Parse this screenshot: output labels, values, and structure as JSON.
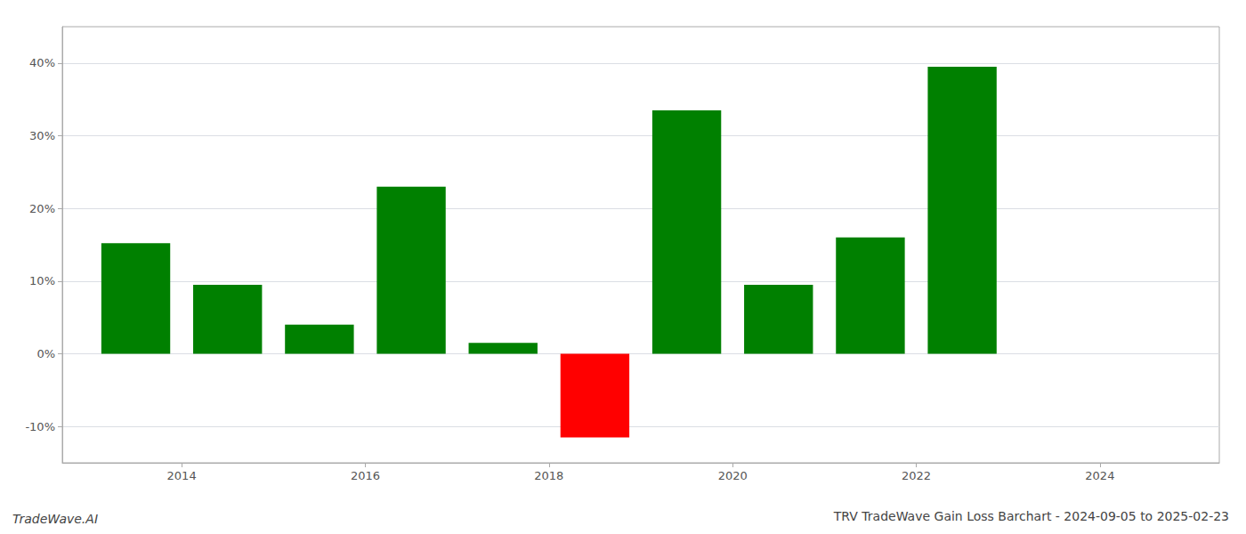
{
  "chart_data": {
    "type": "bar",
    "title": "TRV TradeWave Gain Loss Barchart - 2024-09-05 to 2025-02-23",
    "annotations": [
      "TradeWave.AI"
    ],
    "x": [
      2013,
      2014,
      2015,
      2016,
      2017,
      2018,
      2019,
      2020,
      2021,
      2022
    ],
    "values": [
      15.2,
      9.5,
      4.0,
      23.0,
      1.5,
      -11.5,
      33.5,
      9.5,
      16.0,
      39.5
    ],
    "colors": [
      "#008000",
      "#008000",
      "#008000",
      "#008000",
      "#008000",
      "#ff0000",
      "#008000",
      "#008000",
      "#008000",
      "#008000"
    ],
    "xlim": [
      2012.2,
      2024.8
    ],
    "xticks": [
      {
        "value": 2013.5,
        "label": "2014"
      },
      {
        "value": 2015.5,
        "label": "2016"
      },
      {
        "value": 2017.5,
        "label": "2018"
      },
      {
        "value": 2019.5,
        "label": "2020"
      },
      {
        "value": 2021.5,
        "label": "2022"
      },
      {
        "value": 2023.5,
        "label": "2024"
      }
    ],
    "ylim": [
      -15,
      45
    ],
    "yticks": [
      {
        "value": -10,
        "label": "-10%"
      },
      {
        "value": 0,
        "label": "0%"
      },
      {
        "value": 10,
        "label": "10%"
      },
      {
        "value": 20,
        "label": "20%"
      },
      {
        "value": 30,
        "label": "30%"
      },
      {
        "value": 40,
        "label": "40%"
      }
    ],
    "grid": true
  }
}
